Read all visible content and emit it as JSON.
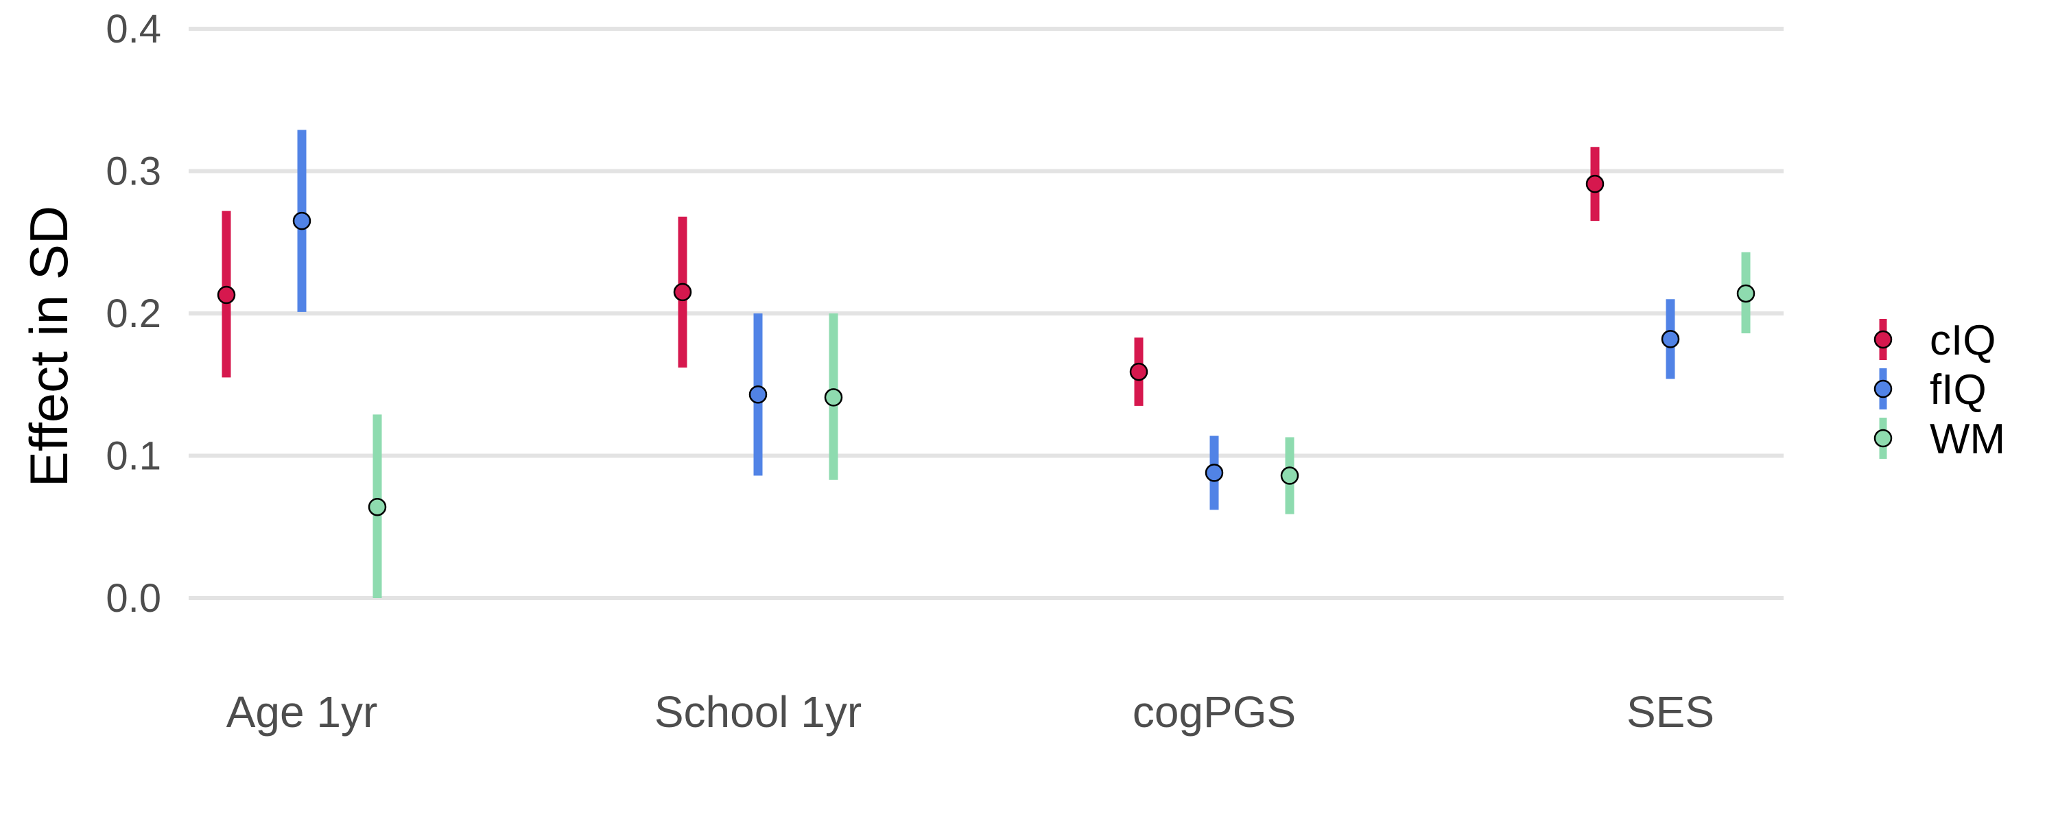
{
  "chart_data": {
    "type": "scatter",
    "subtype": "point-range",
    "title": "",
    "xlabel": "",
    "ylabel": "Effect in SD",
    "ylim": [
      0,
      0.4
    ],
    "yticks": [
      "0.0",
      "0.1",
      "0.2",
      "0.3",
      "0.4"
    ],
    "grid": true,
    "legend": "right",
    "categories": [
      "Age 1yr",
      "School 1yr",
      "cogPGS",
      "SES"
    ],
    "series": [
      {
        "name": "cIQ",
        "color": "#d6184e",
        "points": [
          {
            "category": "Age 1yr",
            "value": 0.213,
            "low": 0.155,
            "high": 0.272
          },
          {
            "category": "School 1yr",
            "value": 0.215,
            "low": 0.162,
            "high": 0.268
          },
          {
            "category": "cogPGS",
            "value": 0.159,
            "low": 0.135,
            "high": 0.183
          },
          {
            "category": "SES",
            "value": 0.291,
            "low": 0.265,
            "high": 0.317
          }
        ]
      },
      {
        "name": "fIQ",
        "color": "#5183e6",
        "points": [
          {
            "category": "Age 1yr",
            "value": 0.265,
            "low": 0.201,
            "high": 0.329
          },
          {
            "category": "School 1yr",
            "value": 0.143,
            "low": 0.086,
            "high": 0.2
          },
          {
            "category": "cogPGS",
            "value": 0.088,
            "low": 0.062,
            "high": 0.114
          },
          {
            "category": "SES",
            "value": 0.182,
            "low": 0.154,
            "high": 0.21
          }
        ]
      },
      {
        "name": "WM",
        "color": "#8edbaf",
        "points": [
          {
            "category": "Age 1yr",
            "value": 0.064,
            "low": 0.0,
            "high": 0.129
          },
          {
            "category": "School 1yr",
            "value": 0.141,
            "low": 0.083,
            "high": 0.2
          },
          {
            "category": "cogPGS",
            "value": 0.086,
            "low": 0.059,
            "high": 0.113
          },
          {
            "category": "SES",
            "value": 0.214,
            "low": 0.186,
            "high": 0.243
          }
        ]
      }
    ]
  }
}
